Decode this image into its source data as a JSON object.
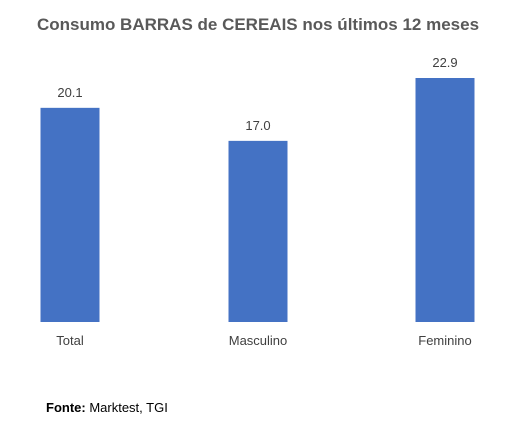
{
  "chart_data": {
    "type": "bar",
    "title": "Consumo BARRAS de CEREAIS nos últimos 12 meses",
    "categories": [
      "Total",
      "Masculino",
      "Feminino"
    ],
    "values": [
      20.1,
      17.0,
      22.9
    ],
    "value_labels": [
      "20.1",
      "17.0",
      "22.9"
    ],
    "xlabel": "",
    "ylabel": "",
    "ylim": [
      0,
      22.9
    ],
    "grid": false,
    "legend": "none",
    "bar_color": "#4472C4"
  },
  "source": {
    "label": "Fonte:",
    "text": " Marktest, TGI"
  }
}
